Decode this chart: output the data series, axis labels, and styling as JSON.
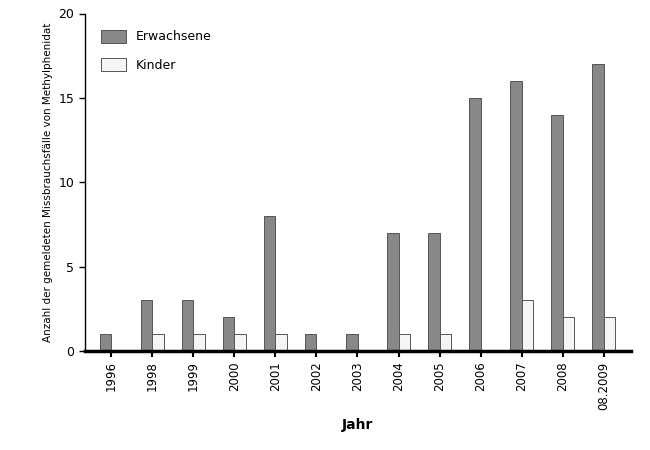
{
  "years": [
    "1996",
    "1998",
    "1999",
    "2000",
    "2001",
    "2002",
    "2003",
    "2004",
    "2005",
    "2006",
    "2007",
    "2008",
    "08.2009"
  ],
  "erwachsene": [
    1,
    3,
    3,
    2,
    8,
    1,
    1,
    7,
    7,
    15,
    16,
    14,
    17
  ],
  "kinder": [
    0,
    1,
    1,
    1,
    1,
    0,
    0,
    1,
    1,
    0,
    3,
    2,
    2
  ],
  "erwachsene_color": "#888888",
  "kinder_color": "#f5f5f5",
  "bar_edge_color": "#555555",
  "ylabel": "Anzahl der gemeldeten Missbrauchsfälle von Methylphenidat",
  "xlabel": "Jahr",
  "ylim": [
    0,
    20
  ],
  "yticks": [
    0,
    5,
    10,
    15,
    20
  ],
  "legend_erwachsene": "Erwachsene",
  "legend_kinder": "Kinder",
  "bar_width": 0.28,
  "background_color": "#ffffff"
}
